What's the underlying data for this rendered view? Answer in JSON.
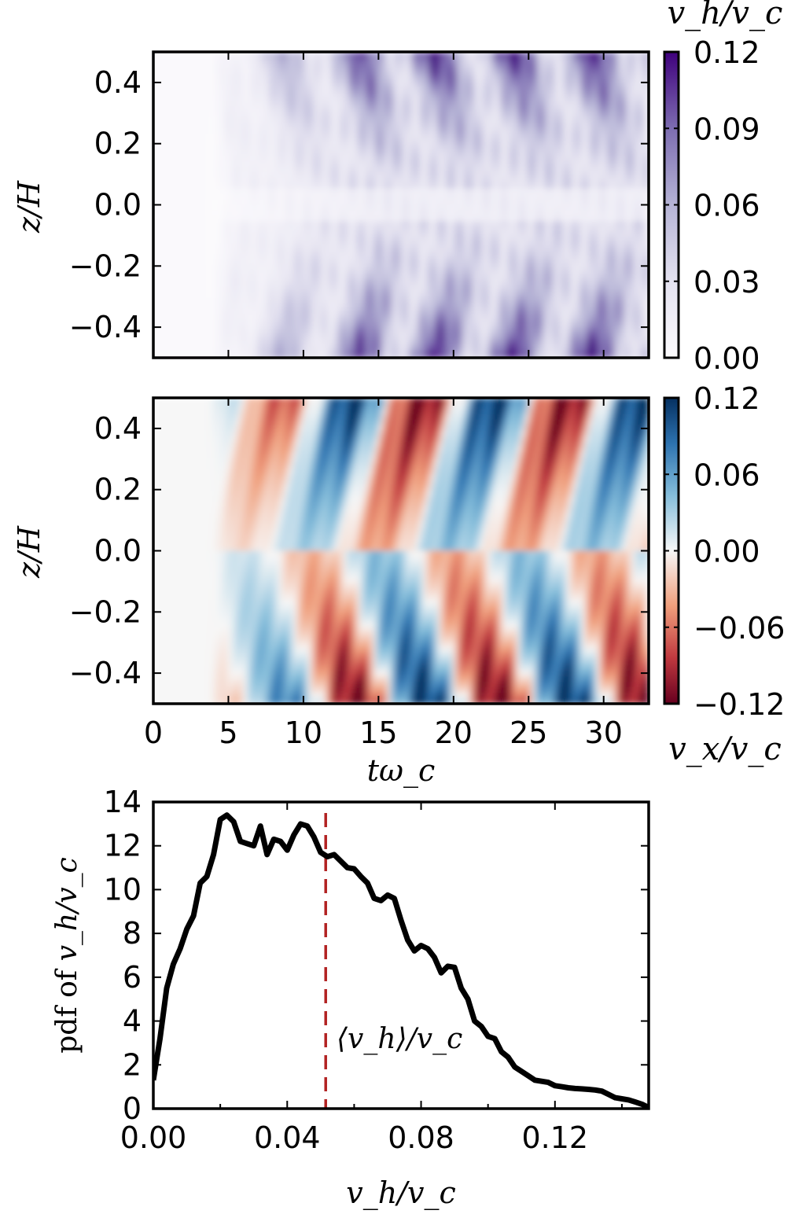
{
  "figure": {
    "panel1": {
      "ylabel": "z/H",
      "colorbar_label": "v_h/v_c",
      "colorbar_ticks": [
        "0.00",
        "0.03",
        "0.06",
        "0.09",
        "0.12"
      ],
      "colorbar_range": [
        0,
        0.12
      ],
      "colormap": "purples",
      "yticks": [
        "−0.4",
        "−0.2",
        "0.0",
        "0.2",
        "0.4"
      ]
    },
    "panel2": {
      "ylabel": "z/H",
      "xlabel": "tω_c",
      "colorbar_label": "v_x/v_c",
      "colorbar_ticks": [
        "−0.12",
        "−0.06",
        "0.00",
        "0.06",
        "0.12"
      ],
      "colorbar_range": [
        -0.12,
        0.12
      ],
      "colormap": "red-blue",
      "yticks": [
        "−0.4",
        "−0.2",
        "0.0",
        "0.2",
        "0.4"
      ],
      "xticks": [
        "0",
        "5",
        "10",
        "15",
        "20",
        "25",
        "30"
      ]
    },
    "panel3": {
      "ylabel_prefix": "pdf of ",
      "ylabel_var": "v_h/v_c",
      "xlabel": "v_h/v_c",
      "annotation": "⟨v_h⟩/v_c",
      "mean_line_color": "#b22222",
      "yticks": [
        "0",
        "2",
        "4",
        "6",
        "8",
        "10",
        "12",
        "14"
      ],
      "xticks": [
        "0.00",
        "0.04",
        "0.08",
        "0.12"
      ]
    }
  },
  "chart_data": [
    {
      "type": "heatmap",
      "quantity": "v_h/v_c",
      "xlabel": "",
      "ylabel": "z/H",
      "xlim": [
        0,
        33
      ],
      "ylim": [
        -0.5,
        0.5
      ],
      "clim": [
        0,
        0.12
      ],
      "description_pattern": "near zero for t<4, growing bands, strong near top and bottom boundaries for t>15"
    },
    {
      "type": "heatmap",
      "quantity": "v_x/v_c",
      "xlabel": "tω_c",
      "ylabel": "z/H",
      "xlim": [
        0,
        33
      ],
      "ylim": [
        -0.5,
        0.5
      ],
      "clim": [
        -0.12,
        0.12
      ]
    },
    {
      "type": "line",
      "xlabel": "v_h/v_c",
      "ylabel": "pdf of v_h/v_c",
      "xlim": [
        0,
        0.148
      ],
      "ylim": [
        0,
        14
      ],
      "mean": 0.0515,
      "x": [
        0.0,
        0.002,
        0.004,
        0.006,
        0.008,
        0.01,
        0.012,
        0.014,
        0.016,
        0.018,
        0.02,
        0.022,
        0.024,
        0.026,
        0.028,
        0.03,
        0.032,
        0.034,
        0.036,
        0.038,
        0.04,
        0.042,
        0.044,
        0.046,
        0.048,
        0.05,
        0.052,
        0.054,
        0.056,
        0.058,
        0.06,
        0.062,
        0.064,
        0.066,
        0.068,
        0.07,
        0.072,
        0.074,
        0.076,
        0.078,
        0.08,
        0.082,
        0.084,
        0.086,
        0.088,
        0.09,
        0.092,
        0.094,
        0.096,
        0.098,
        0.1,
        0.102,
        0.104,
        0.106,
        0.108,
        0.11,
        0.112,
        0.114,
        0.116,
        0.118,
        0.12,
        0.122,
        0.124,
        0.126,
        0.128,
        0.13,
        0.132,
        0.134,
        0.136,
        0.138,
        0.14,
        0.142,
        0.144,
        0.146,
        0.148
      ],
      "values": [
        1.3,
        3.2,
        5.5,
        6.6,
        7.3,
        8.2,
        8.8,
        10.3,
        10.6,
        11.6,
        13.2,
        13.4,
        13.1,
        12.2,
        12.1,
        12.0,
        12.9,
        11.6,
        12.3,
        12.2,
        11.8,
        12.5,
        13.0,
        12.9,
        12.4,
        11.7,
        11.5,
        11.6,
        11.3,
        11.0,
        10.95,
        10.6,
        10.3,
        9.6,
        9.5,
        9.75,
        9.6,
        8.6,
        7.7,
        7.2,
        7.45,
        7.3,
        6.9,
        6.2,
        6.5,
        6.45,
        5.5,
        5.0,
        4.0,
        3.75,
        3.3,
        3.2,
        2.6,
        2.35,
        1.9,
        1.7,
        1.5,
        1.3,
        1.25,
        1.2,
        1.05,
        1.0,
        0.95,
        0.92,
        0.9,
        0.88,
        0.85,
        0.8,
        0.65,
        0.5,
        0.45,
        0.4,
        0.3,
        0.2,
        0.05
      ]
    }
  ]
}
